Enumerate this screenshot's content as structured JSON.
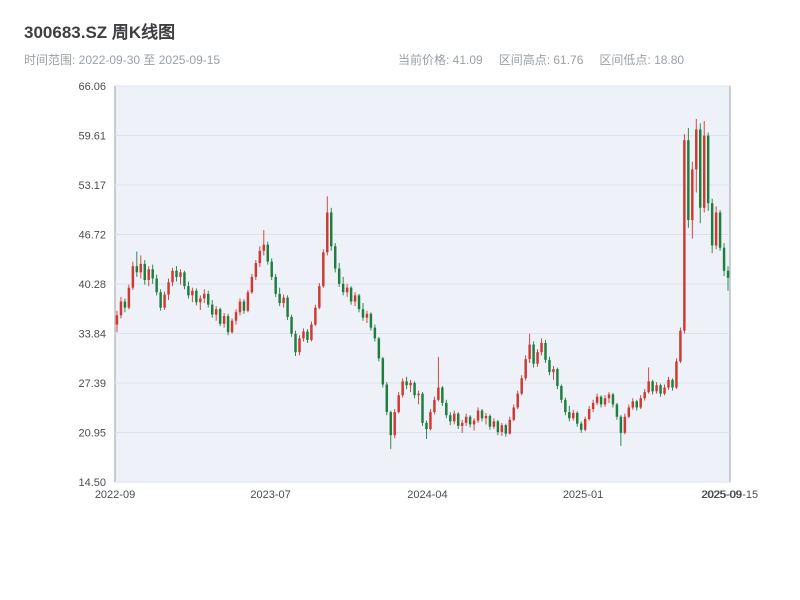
{
  "header": {
    "title": "300683.SZ 周K线图",
    "time_range": "时间范围: 2022-09-30 至 2025-09-15",
    "stats": {
      "current_price": "当前价格: 41.09",
      "range_high": "区间高点: 61.76",
      "range_low": "区间低点: 18.80"
    }
  },
  "chart_data": {
    "type": "candlestick",
    "title": "300683.SZ 周K线图",
    "interval": "weekly",
    "start_date": "2022-09-30",
    "end_date": "2025-09-15",
    "current_price": 41.09,
    "range_high": 61.76,
    "range_low": 18.8,
    "ylim": [
      14.5,
      66.06
    ],
    "y_ticks": [
      14.5,
      20.95,
      27.39,
      33.84,
      40.28,
      46.72,
      53.17,
      59.61,
      66.06
    ],
    "x_ticks": [
      {
        "label": "2022-09",
        "pos": 0.0
      },
      {
        "label": "2023-07",
        "pos": 0.253
      },
      {
        "label": "2024-04",
        "pos": 0.508
      },
      {
        "label": "2025-01",
        "pos": 0.761
      },
      {
        "label": "2025-09",
        "pos": 0.986
      },
      {
        "label": "2025-09-15",
        "pos": 1.0
      }
    ],
    "grid": "horizontal",
    "legend": "none",
    "colors": {
      "up": "#cc3a31",
      "down": "#1f7e3d",
      "plot_bg": "#eef1f8",
      "grid": "#dbe1ec",
      "frame": "#9aa0aa",
      "axis_text": "#4a4d52"
    },
    "candles_ohlc": [
      [
        35.0,
        36.8,
        34.0,
        36.2
      ],
      [
        36.2,
        38.6,
        35.8,
        38.0
      ],
      [
        38.0,
        38.4,
        36.6,
        37.2
      ],
      [
        37.2,
        40.2,
        37.0,
        39.8
      ],
      [
        39.8,
        43.2,
        39.5,
        42.6
      ],
      [
        42.6,
        44.5,
        41.2,
        41.8
      ],
      [
        41.8,
        44.0,
        41.0,
        42.9
      ],
      [
        42.9,
        43.4,
        40.2,
        40.8
      ],
      [
        40.8,
        42.6,
        40.0,
        42.2
      ],
      [
        42.2,
        42.8,
        40.3,
        41.0
      ],
      [
        41.0,
        41.5,
        38.8,
        39.2
      ],
      [
        39.2,
        39.6,
        36.8,
        37.2
      ],
      [
        37.2,
        39.3,
        36.9,
        38.9
      ],
      [
        38.9,
        41.0,
        38.2,
        40.5
      ],
      [
        40.5,
        42.4,
        40.0,
        42.0
      ],
      [
        42.0,
        42.6,
        40.6,
        41.2
      ],
      [
        41.2,
        42.2,
        40.2,
        41.8
      ],
      [
        41.8,
        42.0,
        39.6,
        40.0
      ],
      [
        40.0,
        40.6,
        38.4,
        38.8
      ],
      [
        38.8,
        39.8,
        37.9,
        39.4
      ],
      [
        39.4,
        39.7,
        37.5,
        37.9
      ],
      [
        37.9,
        38.8,
        36.9,
        38.4
      ],
      [
        38.4,
        39.6,
        37.8,
        39.0
      ],
      [
        39.0,
        39.4,
        37.2,
        37.6
      ],
      [
        37.6,
        38.2,
        35.9,
        36.3
      ],
      [
        36.3,
        37.4,
        35.5,
        37.0
      ],
      [
        37.0,
        37.2,
        34.8,
        35.1
      ],
      [
        35.1,
        36.5,
        34.6,
        36.1
      ],
      [
        36.1,
        36.4,
        33.6,
        34.0
      ],
      [
        34.0,
        35.8,
        33.8,
        35.5
      ],
      [
        35.5,
        37.0,
        35.0,
        36.6
      ],
      [
        36.6,
        38.4,
        36.2,
        38.0
      ],
      [
        38.0,
        38.3,
        36.4,
        36.8
      ],
      [
        36.8,
        39.5,
        36.6,
        39.2
      ],
      [
        39.2,
        41.6,
        39.0,
        41.2
      ],
      [
        41.2,
        43.4,
        40.8,
        43.0
      ],
      [
        43.0,
        45.2,
        42.5,
        44.6
      ],
      [
        44.6,
        47.3,
        44.0,
        45.4
      ],
      [
        45.4,
        45.8,
        42.8,
        43.2
      ],
      [
        43.2,
        43.6,
        40.8,
        41.2
      ],
      [
        41.2,
        41.6,
        38.6,
        39.0
      ],
      [
        39.0,
        39.8,
        37.4,
        37.8
      ],
      [
        37.8,
        38.9,
        37.2,
        38.5
      ],
      [
        38.5,
        38.8,
        35.6,
        36.0
      ],
      [
        36.0,
        36.3,
        33.4,
        33.8
      ],
      [
        33.8,
        34.2,
        30.9,
        31.4
      ],
      [
        31.4,
        33.6,
        31.0,
        33.2
      ],
      [
        33.2,
        34.5,
        32.8,
        34.1
      ],
      [
        34.1,
        34.4,
        32.6,
        33.0
      ],
      [
        33.0,
        35.4,
        32.8,
        35.0
      ],
      [
        35.0,
        37.6,
        34.8,
        37.2
      ],
      [
        37.2,
        40.4,
        37.0,
        40.0
      ],
      [
        40.0,
        44.8,
        39.8,
        44.4
      ],
      [
        44.4,
        51.7,
        44.0,
        49.6
      ],
      [
        49.6,
        50.2,
        44.6,
        45.2
      ],
      [
        45.2,
        45.6,
        41.8,
        42.3
      ],
      [
        42.3,
        43.0,
        39.9,
        40.3
      ],
      [
        40.3,
        41.2,
        38.8,
        39.2
      ],
      [
        39.2,
        40.3,
        38.6,
        39.8
      ],
      [
        39.8,
        40.0,
        37.6,
        38.0
      ],
      [
        38.0,
        39.2,
        37.4,
        38.8
      ],
      [
        38.8,
        39.0,
        36.6,
        37.0
      ],
      [
        37.0,
        37.8,
        35.5,
        35.9
      ],
      [
        35.9,
        36.8,
        35.2,
        36.4
      ],
      [
        36.4,
        36.6,
        34.2,
        34.6
      ],
      [
        34.6,
        35.0,
        32.8,
        33.2
      ],
      [
        33.2,
        33.4,
        30.2,
        30.6
      ],
      [
        30.6,
        30.8,
        26.8,
        27.2
      ],
      [
        27.2,
        27.5,
        23.2,
        23.6
      ],
      [
        23.6,
        23.8,
        18.8,
        20.6
      ],
      [
        20.6,
        24.0,
        20.2,
        23.6
      ],
      [
        23.6,
        26.2,
        23.4,
        25.8
      ],
      [
        25.8,
        28.0,
        25.5,
        27.6
      ],
      [
        27.6,
        28.2,
        26.6,
        27.1
      ],
      [
        27.1,
        27.8,
        26.2,
        27.4
      ],
      [
        27.4,
        27.6,
        25.4,
        25.8
      ],
      [
        25.8,
        26.4,
        24.6,
        26.0
      ],
      [
        26.0,
        26.2,
        21.8,
        22.2
      ],
      [
        22.2,
        22.5,
        20.1,
        21.4
      ],
      [
        21.4,
        24.0,
        21.2,
        23.6
      ],
      [
        23.6,
        25.6,
        23.3,
        25.2
      ],
      [
        25.2,
        30.8,
        25.0,
        26.8
      ],
      [
        26.8,
        27.0,
        24.4,
        24.8
      ],
      [
        24.8,
        25.2,
        22.8,
        23.2
      ],
      [
        23.2,
        23.6,
        21.9,
        22.4
      ],
      [
        22.4,
        23.8,
        22.0,
        23.4
      ],
      [
        23.4,
        23.6,
        21.4,
        21.8
      ],
      [
        21.8,
        22.6,
        20.9,
        22.2
      ],
      [
        22.2,
        23.4,
        21.8,
        23.0
      ],
      [
        23.0,
        23.2,
        21.6,
        22.0
      ],
      [
        22.0,
        22.8,
        21.2,
        22.5
      ],
      [
        22.5,
        24.2,
        22.2,
        23.8
      ],
      [
        23.8,
        24.0,
        22.4,
        22.8
      ],
      [
        22.8,
        23.5,
        22.0,
        23.1
      ],
      [
        23.1,
        23.3,
        21.3,
        21.7
      ],
      [
        21.7,
        22.8,
        21.4,
        22.4
      ],
      [
        22.4,
        22.6,
        20.6,
        21.0
      ],
      [
        21.0,
        22.2,
        20.5,
        21.9
      ],
      [
        21.9,
        22.1,
        20.4,
        20.8
      ],
      [
        20.8,
        23.0,
        20.7,
        22.6
      ],
      [
        22.6,
        24.6,
        22.4,
        24.2
      ],
      [
        24.2,
        26.4,
        24.0,
        26.0
      ],
      [
        26.0,
        28.4,
        25.8,
        28.0
      ],
      [
        28.0,
        31.0,
        27.7,
        30.5
      ],
      [
        30.5,
        33.8,
        30.0,
        32.4
      ],
      [
        32.4,
        32.8,
        29.4,
        29.9
      ],
      [
        29.9,
        31.8,
        29.5,
        31.4
      ],
      [
        31.4,
        33.2,
        31.0,
        32.6
      ],
      [
        32.6,
        33.0,
        30.0,
        30.4
      ],
      [
        30.4,
        30.8,
        28.4,
        28.8
      ],
      [
        28.8,
        29.6,
        27.8,
        29.2
      ],
      [
        29.2,
        29.4,
        26.6,
        27.0
      ],
      [
        27.0,
        27.2,
        24.8,
        25.2
      ],
      [
        25.2,
        25.5,
        23.2,
        23.6
      ],
      [
        23.6,
        24.4,
        22.4,
        22.8
      ],
      [
        22.8,
        23.9,
        22.5,
        23.5
      ],
      [
        23.5,
        23.7,
        21.7,
        22.1
      ],
      [
        22.1,
        22.4,
        20.9,
        21.3
      ],
      [
        21.3,
        23.0,
        21.1,
        22.7
      ],
      [
        22.7,
        24.4,
        22.5,
        24.0
      ],
      [
        24.0,
        25.2,
        23.6,
        24.8
      ],
      [
        24.8,
        26.0,
        24.5,
        25.6
      ],
      [
        25.6,
        25.8,
        24.2,
        24.6
      ],
      [
        24.6,
        25.8,
        24.3,
        25.4
      ],
      [
        25.4,
        26.2,
        24.8,
        25.9
      ],
      [
        25.9,
        26.1,
        24.2,
        24.6
      ],
      [
        24.6,
        24.8,
        22.6,
        23.0
      ],
      [
        23.0,
        23.2,
        19.2,
        20.9
      ],
      [
        20.9,
        23.4,
        20.7,
        23.0
      ],
      [
        23.0,
        24.6,
        22.8,
        24.2
      ],
      [
        24.2,
        25.4,
        23.9,
        25.0
      ],
      [
        25.0,
        25.2,
        23.8,
        24.2
      ],
      [
        24.2,
        25.8,
        24.0,
        25.4
      ],
      [
        25.4,
        26.6,
        25.1,
        26.2
      ],
      [
        26.2,
        29.4,
        26.0,
        27.6
      ],
      [
        27.6,
        27.8,
        25.9,
        26.3
      ],
      [
        26.3,
        27.5,
        26.0,
        27.1
      ],
      [
        27.1,
        27.3,
        25.6,
        26.0
      ],
      [
        26.0,
        27.2,
        25.8,
        26.8
      ],
      [
        26.8,
        28.2,
        26.5,
        27.8
      ],
      [
        27.8,
        28.0,
        26.4,
        26.8
      ],
      [
        26.8,
        30.6,
        26.6,
        30.2
      ],
      [
        30.2,
        34.6,
        30.0,
        34.2
      ],
      [
        34.2,
        59.8,
        33.8,
        59.0
      ],
      [
        59.0,
        60.6,
        47.6,
        48.6
      ],
      [
        48.6,
        56.2,
        46.2,
        55.2
      ],
      [
        55.2,
        61.76,
        52.2,
        60.4
      ],
      [
        60.4,
        61.2,
        48.2,
        50.2
      ],
      [
        50.2,
        61.5,
        49.6,
        59.6
      ],
      [
        59.6,
        60.0,
        49.8,
        50.8
      ],
      [
        50.8,
        51.4,
        44.3,
        45.3
      ],
      [
        45.3,
        50.4,
        44.8,
        49.6
      ],
      [
        49.6,
        49.9,
        44.6,
        45.0
      ],
      [
        45.0,
        45.6,
        41.3,
        42.0
      ],
      [
        42.0,
        42.6,
        39.4,
        41.09
      ]
    ]
  }
}
